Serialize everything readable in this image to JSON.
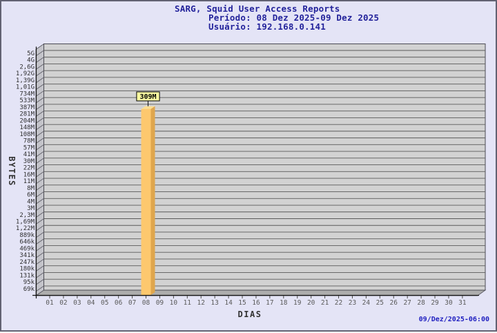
{
  "chart_data": {
    "type": "bar",
    "title": "SARG, Squid User Access Reports",
    "subtitle_period": "Período: 08 Dez 2025-09 Dez 2025",
    "subtitle_user": "Usuário: 192.168.0.141",
    "xlabel": "DIAS",
    "ylabel": "BYTES",
    "footer_timestamp": "09/Dez/2025-06:00",
    "y_scale": "sarg-log-steps",
    "grid": "horizontal",
    "legend": "none",
    "x_ticks": [
      "01",
      "02",
      "03",
      "04",
      "05",
      "06",
      "07",
      "08",
      "09",
      "10",
      "11",
      "12",
      "13",
      "14",
      "15",
      "16",
      "17",
      "18",
      "19",
      "20",
      "21",
      "22",
      "23",
      "24",
      "25",
      "26",
      "27",
      "28",
      "29",
      "30",
      "31"
    ],
    "y_ticks": [
      "5G",
      "4G",
      "2,6G",
      "1,92G",
      "1,39G",
      "1,01G",
      "734M",
      "533M",
      "387M",
      "281M",
      "204M",
      "148M",
      "108M",
      "78M",
      "57M",
      "41M",
      "30M",
      "22M",
      "16M",
      "11M",
      "8M",
      "6M",
      "4M",
      "3M",
      "2,3M",
      "1,69M",
      "1,22M",
      "889k",
      "646k",
      "469k",
      "341k",
      "247k",
      "180k",
      "131k",
      "95k",
      "69k"
    ],
    "bars": [
      {
        "day": "08",
        "value_label": "309M",
        "value_bytes": 309000000
      }
    ],
    "colors": {
      "page_bg": "#e4e4f6",
      "plot_bg": "#d2d2d2",
      "wall_bg": "#c4c4ca",
      "floor_bg": "#adadad",
      "grid": "#5a5a5a",
      "bar_front": "#fdc86e",
      "bar_side": "#dfa64d",
      "bar_top": "#ffdf91",
      "label_box_bg": "#f9f9a0",
      "title_text": "#23239b",
      "timestamp_text": "#2020c0"
    }
  }
}
